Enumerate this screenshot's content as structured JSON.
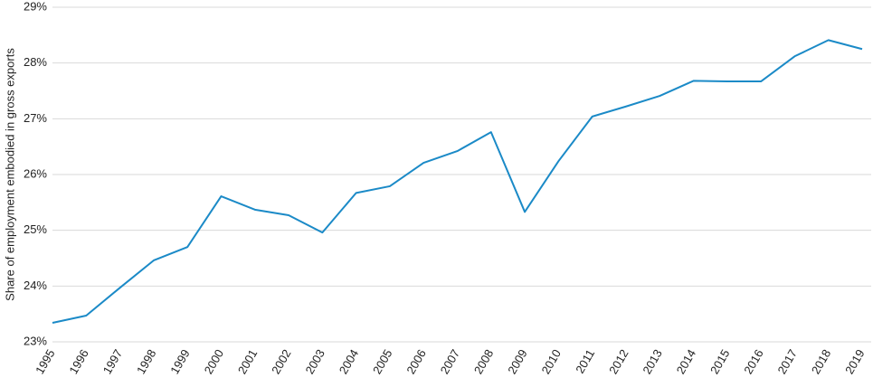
{
  "chart_data": {
    "type": "line",
    "y_label": "Share of employment embodied in gross exports",
    "categories": [
      "1995",
      "1996",
      "1997",
      "1998",
      "1999",
      "2000",
      "2001",
      "2002",
      "2003",
      "2004",
      "2005",
      "2006",
      "2007",
      "2008",
      "2009",
      "2010",
      "2011",
      "2012",
      "2013",
      "2014",
      "2015",
      "2016",
      "2017",
      "2018",
      "2019"
    ],
    "values": [
      23.34,
      23.47,
      23.97,
      24.46,
      24.7,
      25.61,
      25.37,
      25.27,
      24.96,
      25.67,
      25.79,
      26.21,
      26.42,
      26.76,
      25.33,
      26.24,
      27.04,
      27.22,
      27.41,
      27.68,
      27.67,
      27.67,
      28.12,
      28.41,
      28.25
    ],
    "color": "#1b8ac7",
    "ylim": [
      23,
      29
    ],
    "yticks": [
      {
        "value": 23,
        "label": "23%"
      },
      {
        "value": 24,
        "label": "24%"
      },
      {
        "value": 25,
        "label": "25%"
      },
      {
        "value": 26,
        "label": "26%"
      },
      {
        "value": 27,
        "label": "27%"
      },
      {
        "value": 28,
        "label": "28%"
      },
      {
        "value": 29,
        "label": "29%"
      }
    ],
    "grid": true
  }
}
